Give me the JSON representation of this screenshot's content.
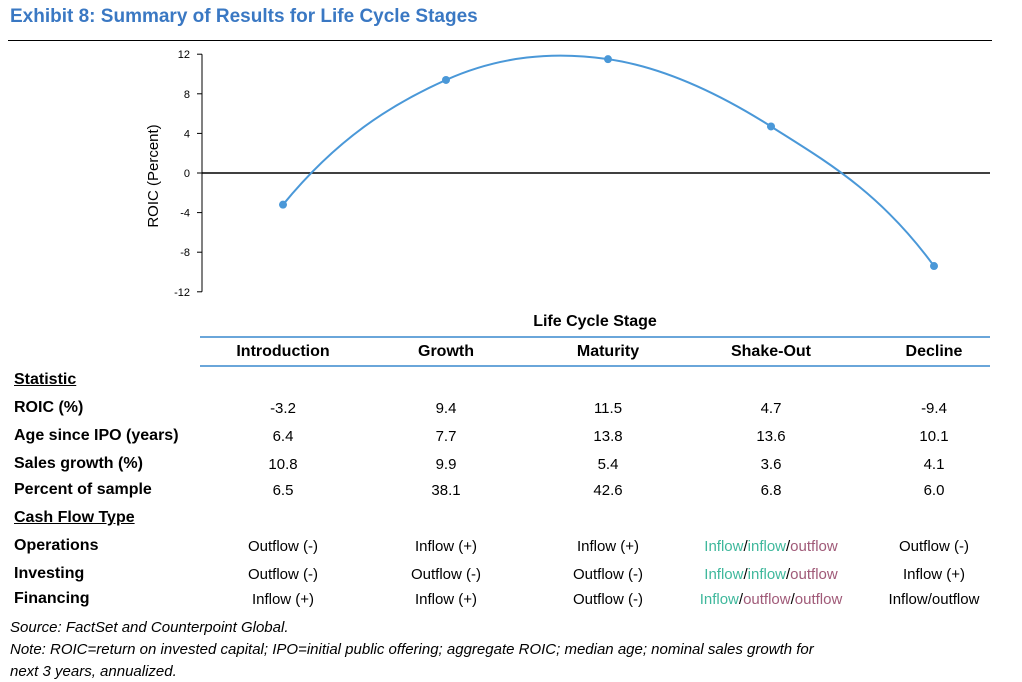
{
  "title": "Exhibit 8: Summary of Results for Life Cycle Stages",
  "colors": {
    "title": "#3a78c3",
    "line": "#4a98d8",
    "rule": "#6aa6da",
    "teal": "#3fb89c",
    "mauve": "#a05a78"
  },
  "chart_data": {
    "type": "line",
    "ylabel": "ROIC (Percent)",
    "xlabel": "Life Cycle Stage",
    "categories": [
      "Introduction",
      "Growth",
      "Maturity",
      "Shake-Out",
      "Decline"
    ],
    "values": [
      -3.2,
      9.4,
      11.5,
      4.7,
      -9.4
    ],
    "ylim": [
      -12,
      12
    ],
    "yticks": [
      "12",
      "8",
      "4",
      "0",
      "-4",
      "-8",
      "-12"
    ],
    "smooth": true,
    "zero_line": true,
    "grid": false
  },
  "table": {
    "statistic_label": "Statistic",
    "cashflow_label": "Cash Flow Type",
    "rows": [
      {
        "label": "ROIC (%)",
        "values": [
          "-3.2",
          "9.4",
          "11.5",
          "4.7",
          "-9.4"
        ]
      },
      {
        "label": "Age since IPO (years)",
        "values": [
          "6.4",
          "7.7",
          "13.8",
          "13.6",
          "10.1"
        ]
      },
      {
        "label": "Sales growth (%)",
        "values": [
          "10.8",
          "9.9",
          "5.4",
          "3.6",
          "4.1"
        ]
      },
      {
        "label": "Percent of sample",
        "values": [
          "6.5",
          "38.1",
          "42.6",
          "6.8",
          "6.0"
        ]
      }
    ],
    "cash_rows": [
      {
        "label": "Operations",
        "values": [
          "Outflow (-)",
          "Inflow (+)",
          "Inflow (+)",
          "",
          "Outflow (-)"
        ],
        "shakeout": [
          [
            "Inflow",
            "teal"
          ],
          [
            "/",
            "plain"
          ],
          [
            "inflow",
            "teal"
          ],
          [
            "/",
            "plain"
          ],
          [
            "outflow",
            "mauve"
          ]
        ]
      },
      {
        "label": "Investing",
        "values": [
          "Outflow (-)",
          "Outflow (-)",
          "Outflow (-)",
          "",
          "Inflow (+)"
        ],
        "shakeout": [
          [
            "Inflow",
            "teal"
          ],
          [
            "/",
            "plain"
          ],
          [
            "inflow",
            "teal"
          ],
          [
            "/",
            "plain"
          ],
          [
            "outflow",
            "mauve"
          ]
        ]
      },
      {
        "label": "Financing",
        "values": [
          "Inflow (+)",
          "Inflow (+)",
          "Outflow (-)",
          "",
          "Inflow/outflow"
        ],
        "shakeout": [
          [
            "Inflow",
            "teal"
          ],
          [
            "/",
            "plain"
          ],
          [
            "outflow",
            "mauve"
          ],
          [
            "/",
            "plain"
          ],
          [
            "outflow",
            "mauve"
          ]
        ]
      }
    ]
  },
  "source": "Source: FactSet and Counterpoint Global.",
  "note_line1": "Note: ROIC=return on invested capital; IPO=initial public offering; aggregate ROIC; median age; nominal sales growth for",
  "note_line2": "next 3 years, annualized."
}
